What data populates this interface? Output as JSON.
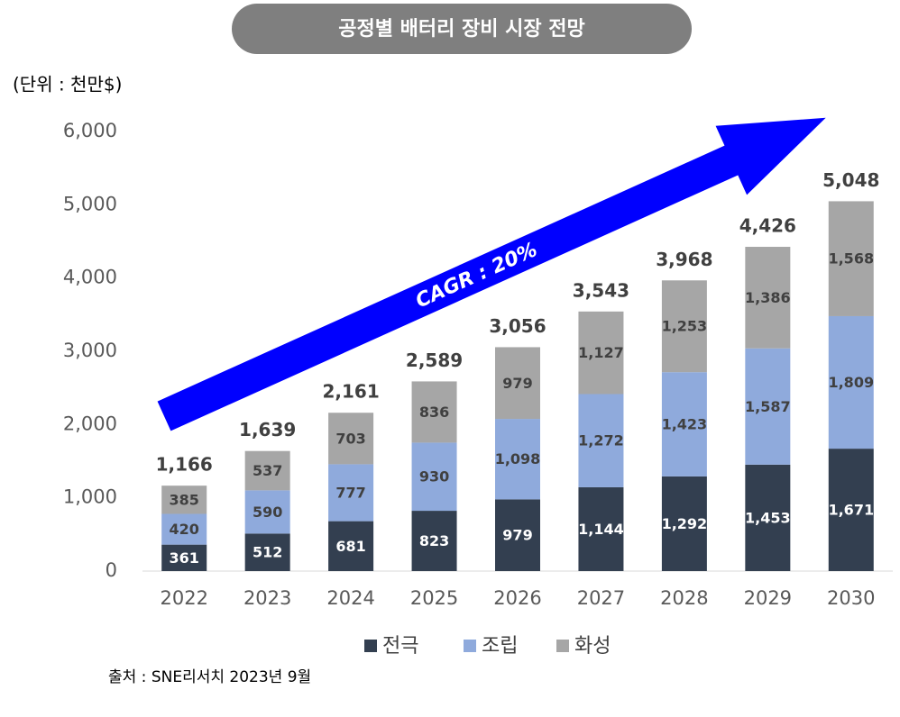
{
  "chart_data": {
    "type": "bar",
    "stacked": true,
    "title": "공정별 배터리 장비 시장 전망",
    "unit_label": "(단위 : 천만$)",
    "annotation": "CAGR : 20%",
    "source": "출처 : SNE리서치 2023년 9월",
    "categories": [
      "2022",
      "2023",
      "2024",
      "2025",
      "2026",
      "2027",
      "2028",
      "2029",
      "2030"
    ],
    "series": [
      {
        "name": "전극",
        "color": "#333f50",
        "label_color": "#ffffff",
        "values": [
          361,
          512,
          681,
          823,
          979,
          1144,
          1292,
          1453,
          1671
        ],
        "value_labels": [
          "361",
          "512",
          "681",
          "823",
          "979",
          "1,144",
          "1,292",
          "1,453",
          "1,671"
        ]
      },
      {
        "name": "조립",
        "color": "#8faadc",
        "label_color": "#404040",
        "values": [
          420,
          590,
          777,
          930,
          1098,
          1272,
          1423,
          1587,
          1809
        ],
        "value_labels": [
          "420",
          "590",
          "777",
          "930",
          "1,098",
          "1,272",
          "1,423",
          "1,587",
          "1,809"
        ]
      },
      {
        "name": "화성",
        "color": "#a6a6a6",
        "label_color": "#404040",
        "values": [
          385,
          537,
          703,
          836,
          979,
          1127,
          1253,
          1386,
          1568
        ],
        "value_labels": [
          "385",
          "537",
          "703",
          "836",
          "979",
          "1,127",
          "1,253",
          "1,386",
          "1,568"
        ]
      }
    ],
    "totals": [
      1166,
      1639,
      2161,
      2589,
      3056,
      3543,
      3968,
      4426,
      5048
    ],
    "total_labels": [
      "1,166",
      "1,639",
      "2,161",
      "2,589",
      "3,056",
      "3,543",
      "3,968",
      "4,426",
      "5,048"
    ],
    "ylim": [
      0,
      6000
    ],
    "yticks": [
      0,
      {
        "value": 1000,
        "label": "1,000"
      },
      {
        "value": 2000,
        "label": "2,000"
      },
      {
        "value": 3000,
        "label": "3,000"
      },
      {
        "value": 4000,
        "label": "4,000"
      },
      {
        "value": 5000,
        "label": "5,000"
      },
      {
        "value": 6000,
        "label": "6,000"
      }
    ],
    "grid": false
  }
}
